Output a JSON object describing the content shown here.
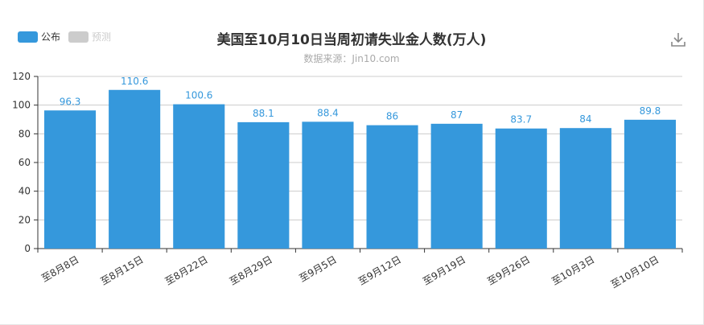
{
  "legend": [
    {
      "label": "公布",
      "color": "#3598dc"
    },
    {
      "label": "预测",
      "color": "#cccccc"
    }
  ],
  "toolbar": {
    "download_icon": "download-icon"
  },
  "chart_data": {
    "type": "bar",
    "title": "美国至10月10日当周初请失业金人数(万人)",
    "subtitle": "数据来源：Jin10.com",
    "categories": [
      "至8月8日",
      "至8月15日",
      "至8月22日",
      "至8月29日",
      "至9月5日",
      "至9月12日",
      "至9月19日",
      "至9月26日",
      "至10月3日",
      "至10月10日"
    ],
    "series": [
      {
        "name": "公布",
        "values": [
          96.3,
          110.6,
          100.6,
          88.1,
          88.4,
          86,
          87,
          83.7,
          84,
          89.8
        ],
        "color": "#3598dc"
      }
    ],
    "value_labels": [
      "96.3",
      "110.6",
      "100.6",
      "88.1",
      "88.4",
      "86",
      "87",
      "83.7",
      "84",
      "89.8"
    ],
    "ylim": [
      0,
      120
    ],
    "yticks": [
      0,
      20,
      40,
      60,
      80,
      100,
      120
    ],
    "grid": true,
    "legend_position": "top-left"
  }
}
